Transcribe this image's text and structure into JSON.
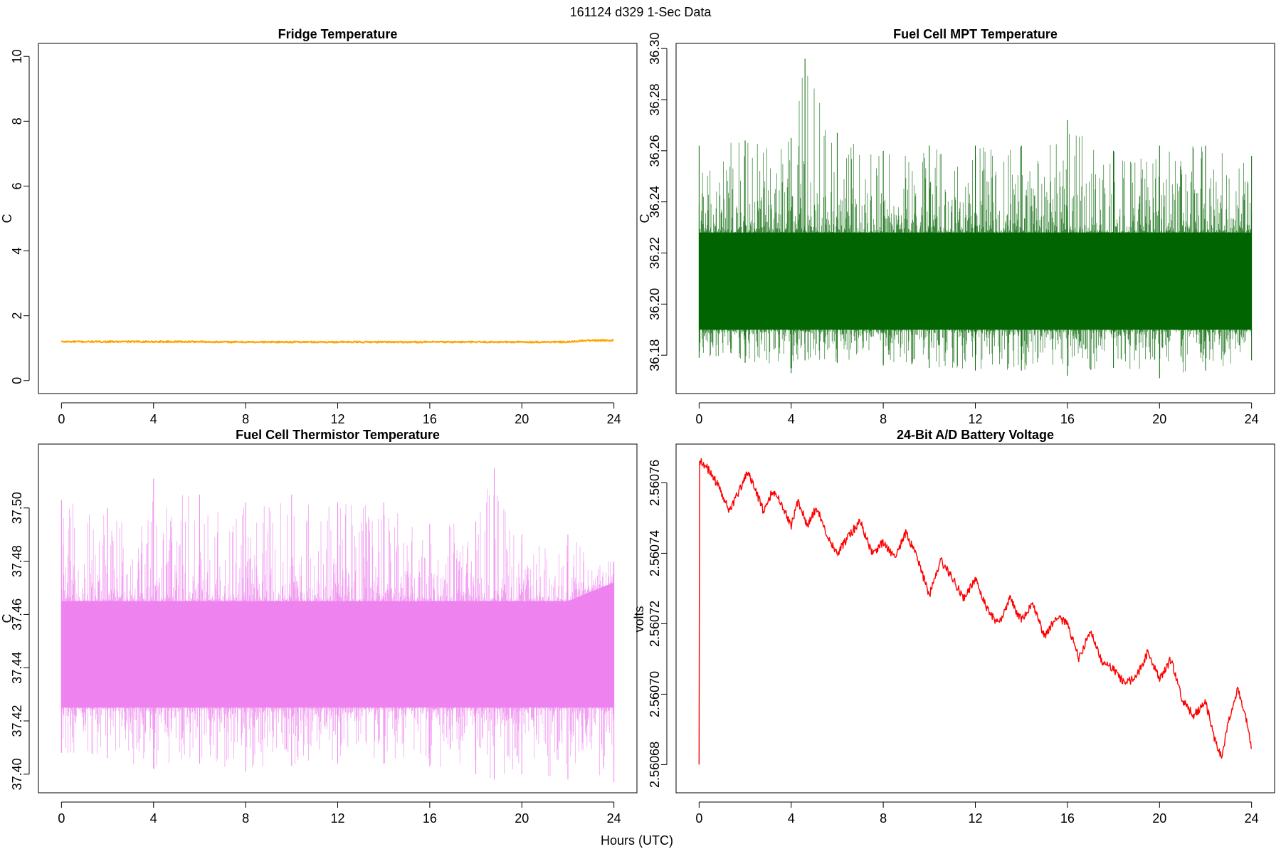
{
  "figure": {
    "suptitle": "161124   d329   1-Sec Data",
    "xlabel": "Hours (UTC)"
  },
  "chart_data": [
    {
      "type": "line",
      "title": "Fridge Temperature",
      "ylabel": "C",
      "xlim": [
        -1,
        25
      ],
      "ylim": [
        -0.4,
        10.4
      ],
      "xticks": [
        0,
        4,
        8,
        12,
        16,
        20,
        24
      ],
      "yticks": [
        0,
        2,
        4,
        6,
        8,
        10
      ],
      "ytick_labels": [
        "0",
        "2",
        "4",
        "6",
        "8",
        "10"
      ],
      "color": "#FFA500",
      "series": [
        {
          "x": [
            0,
            1,
            2,
            3,
            4,
            5,
            6,
            7,
            8,
            9,
            10,
            11,
            12,
            13,
            14,
            15,
            16,
            17,
            18,
            19,
            20,
            21,
            22,
            22.5,
            23,
            24
          ],
          "y": [
            1.2,
            1.2,
            1.2,
            1.2,
            1.2,
            1.2,
            1.2,
            1.19,
            1.19,
            1.19,
            1.19,
            1.19,
            1.19,
            1.19,
            1.19,
            1.19,
            1.19,
            1.19,
            1.19,
            1.19,
            1.19,
            1.19,
            1.19,
            1.22,
            1.24,
            1.24
          ]
        }
      ]
    },
    {
      "type": "line",
      "title": "Fuel Cell MPT Temperature",
      "ylabel": "C",
      "xlim": [
        -1,
        25
      ],
      "ylim": [
        36.165,
        36.302
      ],
      "xticks": [
        0,
        4,
        8,
        12,
        16,
        20,
        24
      ],
      "yticks": [
        36.18,
        36.2,
        36.22,
        36.24,
        36.26,
        36.28,
        36.3
      ],
      "ytick_labels": [
        "36.18",
        "36.20",
        "36.22",
        "36.24",
        "36.26",
        "36.28",
        "36.30"
      ],
      "color": "#006400",
      "series": [
        {
          "x": [
            0,
            2,
            4,
            4.6,
            6,
            8,
            10,
            12,
            14,
            16,
            18,
            20,
            22,
            24
          ],
          "band_low": [
            36.19,
            36.19,
            36.19,
            36.19,
            36.19,
            36.19,
            36.19,
            36.19,
            36.19,
            36.19,
            36.19,
            36.19,
            36.19,
            36.19
          ],
          "band_high": [
            36.228,
            36.228,
            36.228,
            36.228,
            36.228,
            36.228,
            36.228,
            36.228,
            36.228,
            36.228,
            36.228,
            36.228,
            36.228,
            36.228
          ],
          "max": [
            36.262,
            36.264,
            36.265,
            36.296,
            36.267,
            36.26,
            36.262,
            36.262,
            36.262,
            36.272,
            36.26,
            36.262,
            36.262,
            36.258
          ],
          "min": [
            36.179,
            36.177,
            36.173,
            36.178,
            36.177,
            36.176,
            36.175,
            36.174,
            36.174,
            36.172,
            36.175,
            36.171,
            36.174,
            36.178
          ]
        }
      ]
    },
    {
      "type": "line",
      "title": "Fuel Cell Thermistor Temperature",
      "ylabel": "C",
      "xlim": [
        -1,
        25
      ],
      "ylim": [
        37.393,
        37.524
      ],
      "xticks": [
        0,
        4,
        8,
        12,
        16,
        20,
        24
      ],
      "yticks": [
        37.4,
        37.42,
        37.44,
        37.46,
        37.48,
        37.5
      ],
      "ytick_labels": [
        "37.40",
        "37.42",
        "37.44",
        "37.46",
        "37.48",
        "37.50"
      ],
      "color": "#EE82EE",
      "series": [
        {
          "x": [
            0,
            2,
            4,
            6,
            8,
            10,
            12,
            14,
            16,
            18,
            18.8,
            20,
            22,
            24
          ],
          "band_low": [
            37.425,
            37.425,
            37.425,
            37.425,
            37.425,
            37.425,
            37.425,
            37.425,
            37.425,
            37.425,
            37.425,
            37.425,
            37.425,
            37.425
          ],
          "band_high": [
            37.465,
            37.465,
            37.465,
            37.465,
            37.465,
            37.465,
            37.465,
            37.465,
            37.465,
            37.465,
            37.465,
            37.465,
            37.465,
            37.472
          ],
          "max": [
            37.503,
            37.5,
            37.511,
            37.505,
            37.502,
            37.505,
            37.502,
            37.502,
            37.494,
            37.495,
            37.515,
            37.49,
            37.49,
            37.48
          ],
          "min": [
            37.408,
            37.406,
            37.402,
            37.404,
            37.401,
            37.403,
            37.404,
            37.404,
            37.403,
            37.4,
            37.398,
            37.4,
            37.398,
            37.397
          ]
        }
      ]
    },
    {
      "type": "line",
      "title": "24-Bit A/D Battery Voltage",
      "ylabel": "volts",
      "xlim": [
        -1,
        25
      ],
      "ylim": [
        2.560672,
        2.560771
      ],
      "xticks": [
        0,
        4,
        8,
        12,
        16,
        20,
        24
      ],
      "yticks": [
        2.56068,
        2.5607,
        2.56072,
        2.56074,
        2.56076
      ],
      "ytick_labels": [
        "2.56068",
        "2.56070",
        "2.56072",
        "2.56074",
        "2.56076"
      ],
      "color": "#FF0000",
      "series": [
        {
          "x": [
            0,
            0.02,
            0.1,
            0.5,
            1.0,
            1.3,
            1.7,
            2.1,
            2.5,
            2.8,
            3.2,
            3.6,
            4.0,
            4.3,
            4.7,
            5.1,
            5.5,
            6.0,
            6.5,
            7.0,
            7.5,
            8.0,
            8.5,
            9.0,
            9.5,
            10.0,
            10.5,
            11.0,
            11.5,
            12.0,
            12.5,
            13.0,
            13.5,
            14.0,
            14.5,
            15.0,
            15.5,
            16.0,
            16.5,
            17.0,
            17.5,
            18.0,
            18.5,
            19.0,
            19.5,
            20.0,
            20.5,
            21.0,
            21.5,
            22.0,
            22.4,
            22.7,
            23.0,
            23.4,
            23.8,
            24.0
          ],
          "y": [
            2.56068,
            2.560766,
            2.560766,
            2.560763,
            2.560757,
            2.560752,
            2.560757,
            2.560763,
            2.560757,
            2.560752,
            2.560758,
            2.560754,
            2.560748,
            2.560755,
            2.560748,
            2.560753,
            2.560746,
            2.56074,
            2.560745,
            2.560749,
            2.56074,
            2.560743,
            2.560739,
            2.560746,
            2.560738,
            2.560728,
            2.560738,
            2.560733,
            2.560727,
            2.560733,
            2.560724,
            2.56072,
            2.560727,
            2.560721,
            2.560726,
            2.560716,
            2.560722,
            2.56072,
            2.56071,
            2.560718,
            2.560709,
            2.560707,
            2.560703,
            2.560705,
            2.560712,
            2.560704,
            2.56071,
            2.560698,
            2.560694,
            2.560698,
            2.560687,
            2.560682,
            2.560692,
            2.560702,
            2.560692,
            2.560684
          ]
        }
      ]
    }
  ]
}
